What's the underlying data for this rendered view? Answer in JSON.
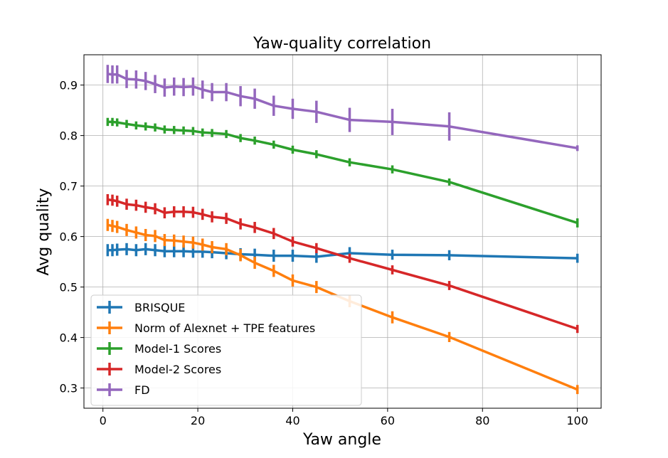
{
  "chart_data": {
    "type": "line",
    "title": "Yaw-quality correlation",
    "xlabel": "Yaw angle",
    "ylabel": "Avg quality",
    "xlim": [
      -4,
      105
    ],
    "ylim": [
      0.26,
      0.96
    ],
    "xticks": [
      "0",
      "20",
      "40",
      "60",
      "80",
      "100"
    ],
    "yticks": [
      "0.3",
      "0.4",
      "0.5",
      "0.6",
      "0.7",
      "0.8",
      "0.9"
    ],
    "grid": true,
    "legend_position": "lower-left",
    "x": [
      1,
      2,
      3,
      5,
      7,
      9,
      11,
      13,
      15,
      17,
      19,
      21,
      23,
      26,
      29,
      32,
      36,
      40,
      45,
      52,
      61,
      73,
      100
    ],
    "series": [
      {
        "name": "BRISQUE",
        "color": "#1f77b4",
        "values": [
          0.573,
          0.573,
          0.574,
          0.575,
          0.573,
          0.575,
          0.573,
          0.571,
          0.571,
          0.571,
          0.57,
          0.57,
          0.569,
          0.567,
          0.565,
          0.564,
          0.562,
          0.562,
          0.56,
          0.567,
          0.564,
          0.563,
          0.557
        ],
        "errors": [
          0.012,
          0.012,
          0.012,
          0.012,
          0.012,
          0.012,
          0.012,
          0.012,
          0.012,
          0.012,
          0.012,
          0.012,
          0.012,
          0.012,
          0.012,
          0.012,
          0.012,
          0.012,
          0.012,
          0.012,
          0.01,
          0.01,
          0.009
        ]
      },
      {
        "name": "Norm of Alexnet + TPE features",
        "color": "#ff7f0e",
        "values": [
          0.623,
          0.621,
          0.619,
          0.613,
          0.608,
          0.603,
          0.601,
          0.593,
          0.592,
          0.59,
          0.588,
          0.584,
          0.579,
          0.575,
          0.563,
          0.548,
          0.532,
          0.513,
          0.5,
          0.472,
          0.44,
          0.401,
          0.297
        ],
        "errors": [
          0.012,
          0.012,
          0.012,
          0.012,
          0.012,
          0.012,
          0.012,
          0.012,
          0.012,
          0.012,
          0.012,
          0.012,
          0.012,
          0.012,
          0.012,
          0.012,
          0.012,
          0.012,
          0.012,
          0.012,
          0.012,
          0.01,
          0.009
        ]
      },
      {
        "name": "Model-1 Scores",
        "color": "#2ca02c",
        "values": [
          0.827,
          0.827,
          0.826,
          0.823,
          0.82,
          0.818,
          0.816,
          0.812,
          0.811,
          0.81,
          0.809,
          0.806,
          0.805,
          0.803,
          0.795,
          0.79,
          0.782,
          0.772,
          0.763,
          0.747,
          0.733,
          0.708,
          0.627
        ],
        "errors": [
          0.008,
          0.008,
          0.008,
          0.008,
          0.008,
          0.008,
          0.008,
          0.008,
          0.008,
          0.008,
          0.008,
          0.008,
          0.008,
          0.008,
          0.008,
          0.008,
          0.008,
          0.008,
          0.008,
          0.008,
          0.008,
          0.007,
          0.009
        ]
      },
      {
        "name": "Model-2 Scores",
        "color": "#d62728",
        "values": [
          0.673,
          0.672,
          0.67,
          0.664,
          0.662,
          0.658,
          0.655,
          0.647,
          0.649,
          0.649,
          0.648,
          0.644,
          0.639,
          0.636,
          0.625,
          0.618,
          0.606,
          0.59,
          0.577,
          0.557,
          0.534,
          0.503,
          0.417
        ],
        "errors": [
          0.011,
          0.011,
          0.011,
          0.011,
          0.011,
          0.011,
          0.011,
          0.011,
          0.011,
          0.011,
          0.011,
          0.011,
          0.011,
          0.011,
          0.011,
          0.011,
          0.011,
          0.01,
          0.01,
          0.009,
          0.009,
          0.009,
          0.008
        ]
      },
      {
        "name": "FD",
        "color": "#9467bd",
        "values": [
          0.922,
          0.921,
          0.921,
          0.912,
          0.911,
          0.908,
          0.902,
          0.895,
          0.897,
          0.896,
          0.897,
          0.891,
          0.886,
          0.886,
          0.878,
          0.873,
          0.859,
          0.853,
          0.847,
          0.831,
          0.827,
          0.818,
          0.775
        ],
        "errors": [
          0.018,
          0.018,
          0.018,
          0.018,
          0.018,
          0.018,
          0.018,
          0.018,
          0.018,
          0.018,
          0.018,
          0.018,
          0.018,
          0.018,
          0.02,
          0.02,
          0.02,
          0.02,
          0.022,
          0.024,
          0.026,
          0.028,
          0.002
        ]
      }
    ]
  }
}
